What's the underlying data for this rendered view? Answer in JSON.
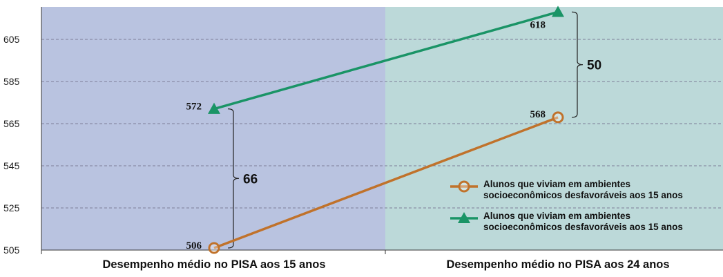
{
  "chart_data": {
    "type": "line",
    "categories": [
      "Desempenho médio no PISA aos 15 anos",
      "Desempenho médio no PISA aos 24 anos"
    ],
    "yticks": [
      505,
      525,
      545,
      565,
      585,
      605
    ],
    "ylim": [
      505,
      622
    ],
    "grid": true,
    "series": [
      {
        "name": "Alunos que viviam em ambientes socioeconômicos desfavoráveis aos 15 anos",
        "legend_lines": [
          "Alunos que viviam em ambientes",
          "socioeconômicos desfavoráveis aos 15 anos"
        ],
        "values": [
          506,
          568
        ],
        "labels": [
          "506",
          "568"
        ],
        "color": "#c0722b",
        "marker": "circle"
      },
      {
        "name": "Alunos que viviam em ambientes socioeconômicos desfavoráveis aos 15 anos",
        "legend_lines": [
          "Alunos que viviam em ambientes",
          "socioeconômicos desfavoráveis aos 15 anos"
        ],
        "values": [
          572,
          618
        ],
        "labels": [
          "572",
          "618"
        ],
        "color": "#1a9466",
        "marker": "triangle"
      }
    ],
    "gaps": [
      {
        "category_index": 0,
        "low": 506,
        "high": 572,
        "label": "66"
      },
      {
        "category_index": 1,
        "low": 568,
        "high": 618,
        "label": "50"
      }
    ],
    "background_colors": [
      "#b9c3e0",
      "#bcd9d9"
    ],
    "legend_position": "bottom-right"
  }
}
